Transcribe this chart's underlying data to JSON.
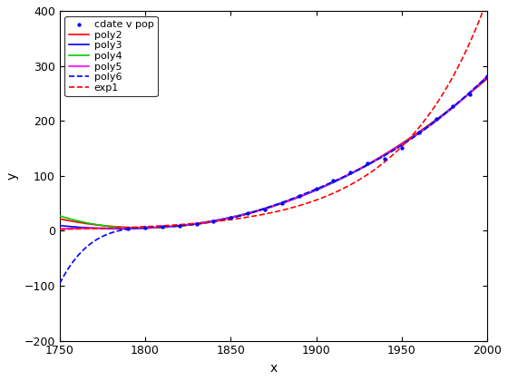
{
  "title": "",
  "xlabel": "x",
  "ylabel": "y",
  "xlim": [
    1750,
    2000
  ],
  "ylim": [
    -200,
    400
  ],
  "xticks": [
    1750,
    1800,
    1850,
    1900,
    1950,
    2000
  ],
  "yticks": [
    -200,
    -100,
    0,
    100,
    200,
    300,
    400
  ],
  "cdate": [
    1790,
    1800,
    1810,
    1820,
    1830,
    1840,
    1850,
    1860,
    1870,
    1880,
    1890,
    1900,
    1910,
    1920,
    1930,
    1940,
    1950,
    1960,
    1970,
    1980,
    1990,
    2000
  ],
  "pop": [
    3.929,
    5.308,
    7.24,
    9.638,
    12.866,
    17.069,
    23.192,
    31.443,
    38.558,
    50.156,
    62.948,
    75.995,
    91.972,
    105.711,
    122.775,
    131.669,
    150.697,
    179.323,
    203.212,
    226.505,
    248.71,
    281.422
  ],
  "x_fit_start": 1750,
  "x_fit_end": 2000,
  "poly2_color": "#ff0000",
  "poly3_color": "#0000ff",
  "poly4_color": "#00cc00",
  "poly5_color": "#ff00ff",
  "poly6_color": "#0000ff",
  "exp1_color": "#ff0000",
  "scatter_color": "#0000ff",
  "legend_fontsize": 8,
  "background_color": "#ffffff",
  "matlab_style": true
}
